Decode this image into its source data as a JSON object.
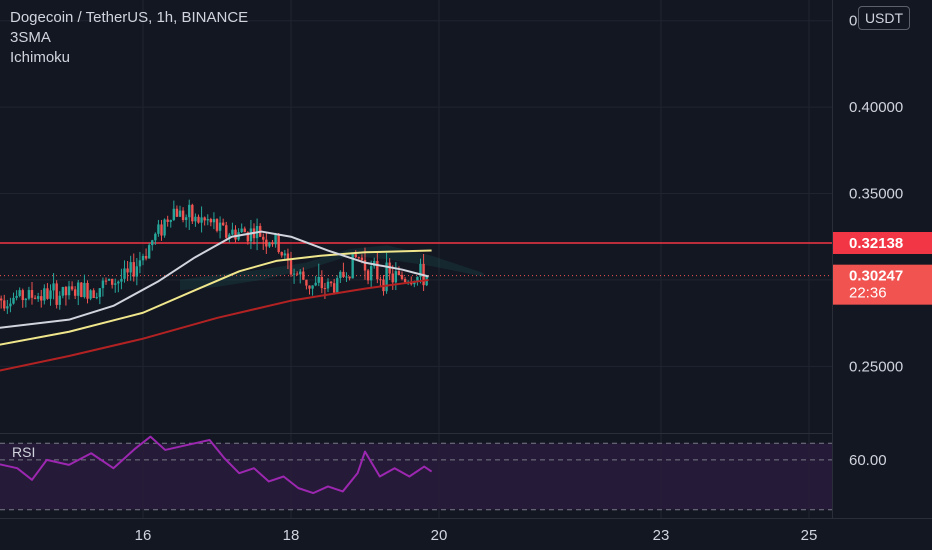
{
  "header": {
    "symbol_title": "Dogecoin / TetherUS, 1h, BINANCE",
    "indicators": [
      "3SMA",
      "Ichimoku"
    ],
    "currency_button": "USDT"
  },
  "rsi_panel": {
    "label": "RSI",
    "level_label": "60.00"
  },
  "colors": {
    "background": "#131722",
    "grid": "#1f2430",
    "bull": "#26a69a",
    "bear": "#ef5350",
    "sma_fast": "#d1d4dc",
    "sma_mid": "#f0e68c",
    "sma_slow": "#b22222",
    "resistance_line": "#f23645",
    "rsi_line": "#9c27b0",
    "rsi_band": "#2a1b3d",
    "last_price_badge": "#f05350",
    "level_badge": "#f23645"
  },
  "chart_data": {
    "type": "candlestick",
    "y_axis": {
      "ylim": [
        0.212,
        0.462
      ],
      "ticks": [
        0.45,
        0.4,
        0.35,
        0.25
      ],
      "tick_labels": [
        "0.45000",
        "0.40000",
        "0.35000",
        "0.25000"
      ]
    },
    "x_axis": {
      "ticks": [
        16,
        18,
        20,
        23,
        25
      ],
      "tick_labels": [
        "16",
        "18",
        "20",
        "23",
        "25"
      ]
    },
    "horizontal_level": {
      "value": 0.32138,
      "label": "0.32138"
    },
    "last_price": {
      "value": 0.30247,
      "label": "0.30247",
      "countdown": "22:36"
    },
    "price_path": [
      [
        14.0,
        0.289
      ],
      [
        14.5,
        0.291
      ],
      [
        15.0,
        0.292
      ],
      [
        15.4,
        0.296
      ],
      [
        15.8,
        0.302
      ],
      [
        16.1,
        0.321
      ],
      [
        16.4,
        0.341
      ],
      [
        16.6,
        0.336
      ],
      [
        16.9,
        0.333
      ],
      [
        17.1,
        0.327
      ],
      [
        17.5,
        0.328
      ],
      [
        17.8,
        0.321
      ],
      [
        18.0,
        0.306
      ],
      [
        18.3,
        0.296
      ],
      [
        18.6,
        0.297
      ],
      [
        18.9,
        0.314
      ],
      [
        19.1,
        0.304
      ],
      [
        19.4,
        0.301
      ],
      [
        19.86,
        0.302
      ]
    ],
    "sma_fast": [
      [
        14.0,
        0.272
      ],
      [
        15.0,
        0.277
      ],
      [
        15.6,
        0.285
      ],
      [
        16.2,
        0.299
      ],
      [
        16.7,
        0.313
      ],
      [
        17.2,
        0.325
      ],
      [
        17.6,
        0.328
      ],
      [
        18.0,
        0.325
      ],
      [
        18.5,
        0.317
      ],
      [
        19.0,
        0.31
      ],
      [
        19.5,
        0.306
      ],
      [
        19.86,
        0.302
      ]
    ],
    "sma_mid": [
      [
        14.0,
        0.262
      ],
      [
        15.0,
        0.27
      ],
      [
        16.0,
        0.281
      ],
      [
        16.7,
        0.294
      ],
      [
        17.3,
        0.305
      ],
      [
        17.8,
        0.311
      ],
      [
        18.4,
        0.314
      ],
      [
        19.0,
        0.316
      ],
      [
        19.9,
        0.317
      ]
    ],
    "sma_slow": [
      [
        14.0,
        0.247
      ],
      [
        15.0,
        0.256
      ],
      [
        16.0,
        0.266
      ],
      [
        17.0,
        0.278
      ],
      [
        18.0,
        0.288
      ],
      [
        19.0,
        0.295
      ],
      [
        19.86,
        0.3
      ]
    ],
    "rsi": {
      "ylim": [
        25,
        75
      ],
      "upper": 70,
      "mid": 60,
      "lower": 30,
      "level_label": "60.00",
      "values": [
        [
          14.0,
          58
        ],
        [
          14.3,
          55
        ],
        [
          14.5,
          48
        ],
        [
          14.7,
          60
        ],
        [
          15.0,
          57
        ],
        [
          15.3,
          64
        ],
        [
          15.6,
          55
        ],
        [
          15.9,
          67
        ],
        [
          16.1,
          74
        ],
        [
          16.3,
          66
        ],
        [
          16.6,
          69
        ],
        [
          16.9,
          72
        ],
        [
          17.1,
          61
        ],
        [
          17.3,
          52
        ],
        [
          17.5,
          55
        ],
        [
          17.7,
          47
        ],
        [
          17.9,
          50
        ],
        [
          18.1,
          43
        ],
        [
          18.3,
          40
        ],
        [
          18.5,
          44
        ],
        [
          18.7,
          41
        ],
        [
          18.9,
          52
        ],
        [
          19.0,
          65
        ],
        [
          19.2,
          50
        ],
        [
          19.4,
          55
        ],
        [
          19.6,
          50
        ],
        [
          19.8,
          56
        ],
        [
          19.9,
          53
        ]
      ]
    }
  }
}
